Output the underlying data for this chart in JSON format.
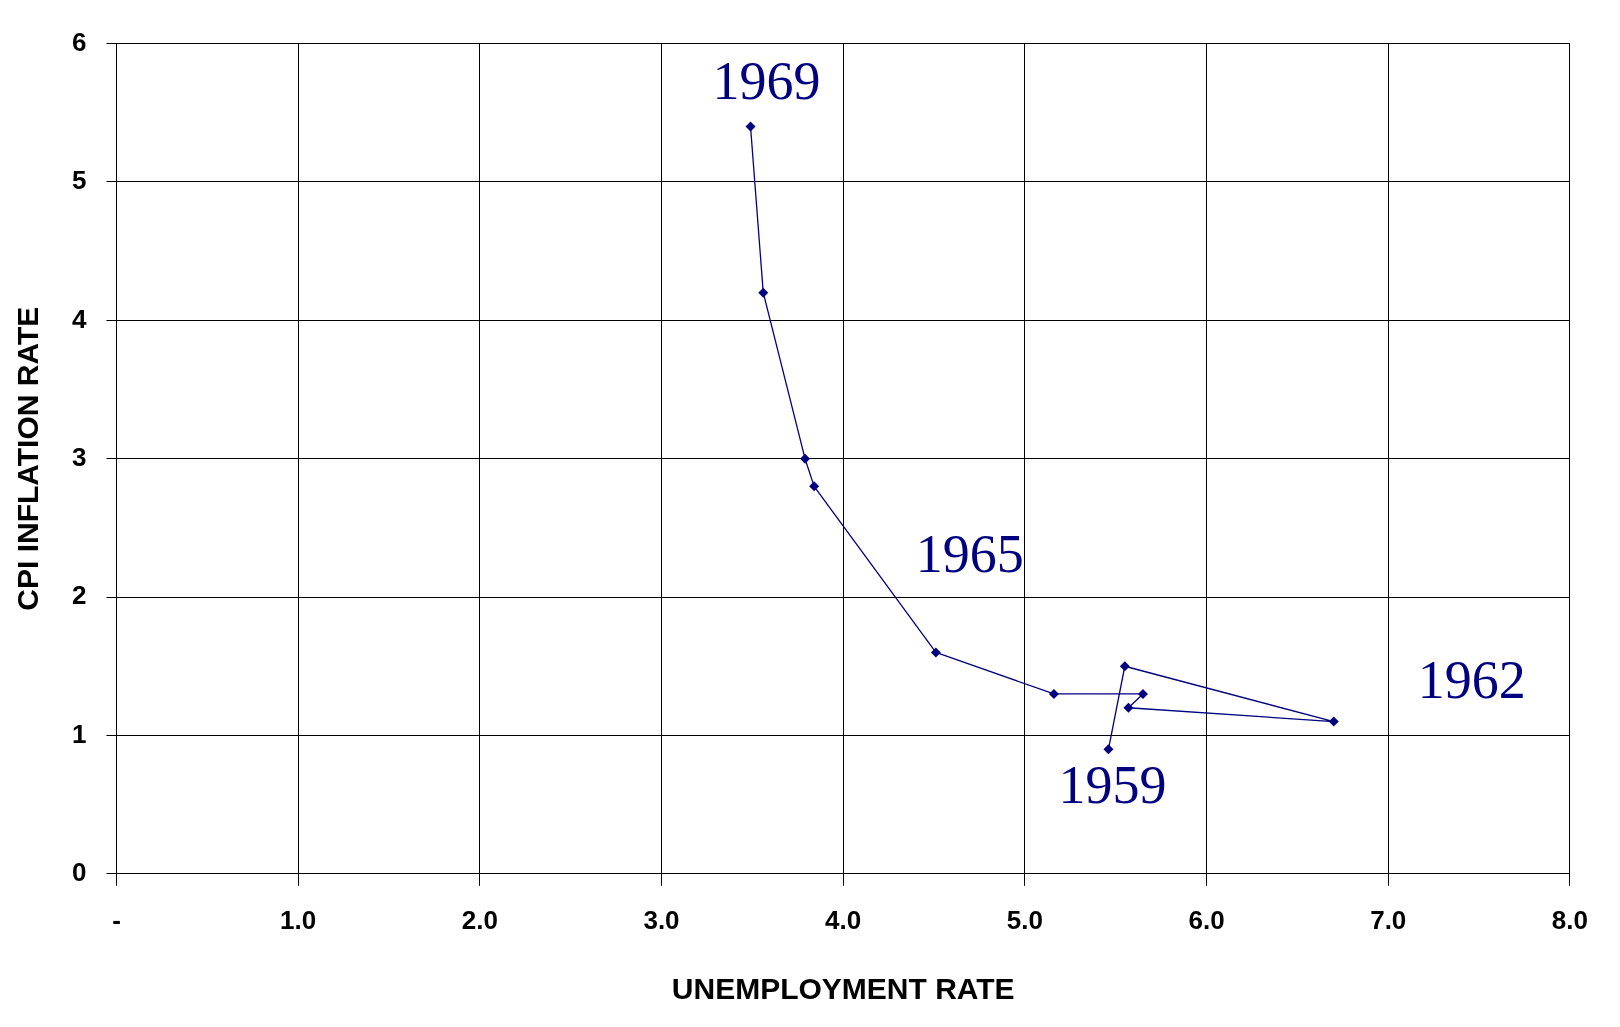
{
  "chart_data": {
    "type": "line",
    "xlabel": "UNEMPLOYMENT RATE",
    "ylabel": "CPI INFLATION RATE",
    "x": [
      5.46,
      5.55,
      6.7,
      5.57,
      5.65,
      5.16,
      4.51,
      3.84,
      3.79,
      3.56,
      3.49
    ],
    "series": [
      {
        "color": "#000080",
        "values": [
          0.9,
          1.5,
          1.1,
          1.2,
          1.3,
          1.3,
          1.6,
          2.8,
          3.0,
          4.2,
          5.4
        ]
      }
    ],
    "xlim": [
      0,
      8
    ],
    "xticks": [
      {
        "value": 0,
        "label": "-"
      },
      {
        "value": 1,
        "label": "1.0"
      },
      {
        "value": 2,
        "label": "2.0"
      },
      {
        "value": 3,
        "label": "3.0"
      },
      {
        "value": 4,
        "label": "4.0"
      },
      {
        "value": 5,
        "label": "5.0"
      },
      {
        "value": 6,
        "label": "6.0"
      },
      {
        "value": 7,
        "label": "7.0"
      },
      {
        "value": 8,
        "label": "8.0"
      }
    ],
    "ylim": [
      0,
      6
    ],
    "yticks": [
      0,
      1,
      2,
      3,
      4,
      5,
      6
    ],
    "annotations": [
      {
        "text": "1969",
        "x": 3.49,
        "y": 5.4
      },
      {
        "text": "1965",
        "x": 4.51,
        "y": 1.6
      },
      {
        "text": "1962",
        "x": 6.7,
        "y": 1.1
      },
      {
        "text": "1959",
        "x": 5.46,
        "y": 0.9
      }
    ],
    "grid": true,
    "marker": "diamond",
    "line_style": "solid",
    "legend": false
  }
}
